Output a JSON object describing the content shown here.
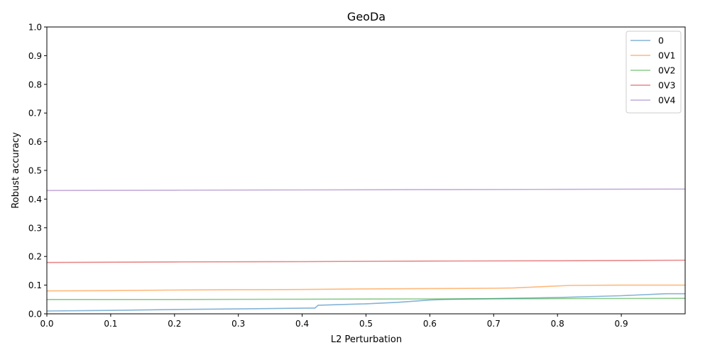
{
  "chart_data": {
    "type": "line",
    "title": "GeoDa",
    "xlabel": "L2 Perturbation",
    "ylabel": "Robust accuracy",
    "xlim": [
      0,
      1.0
    ],
    "ylim": [
      0,
      1.0
    ],
    "xticks": [
      "0.0",
      "0.1",
      "0.2",
      "0.3",
      "0.4",
      "0.5",
      "0.6",
      "0.7",
      "0.8",
      "0.9"
    ],
    "xtick_values": [
      0,
      0.1,
      0.2,
      0.3,
      0.4,
      0.5,
      0.6,
      0.7,
      0.8,
      0.9
    ],
    "yticks": [
      "0.0",
      "0.1",
      "0.2",
      "0.3",
      "0.4",
      "0.5",
      "0.6",
      "0.7",
      "0.8",
      "0.9",
      "1.0"
    ],
    "ytick_values": [
      0,
      0.1,
      0.2,
      0.3,
      0.4,
      0.5,
      0.6,
      0.7,
      0.8,
      0.9,
      1.0
    ],
    "grid": false,
    "legend_position": "top-right",
    "series": [
      {
        "name": "0",
        "color": "#1f77b4",
        "x": [
          0,
          0.1,
          0.2,
          0.3,
          0.41,
          0.42,
          0.425,
          0.5,
          0.55,
          0.6,
          0.62,
          0.7,
          0.8,
          0.9,
          0.97,
          1.0
        ],
        "y": [
          0.01,
          0.012,
          0.015,
          0.017,
          0.02,
          0.02,
          0.03,
          0.035,
          0.04,
          0.048,
          0.05,
          0.053,
          0.057,
          0.063,
          0.07,
          0.07
        ]
      },
      {
        "name": "0V1",
        "color": "#ff7f0e",
        "x": [
          0,
          0.1,
          0.2,
          0.3,
          0.4,
          0.5,
          0.6,
          0.7,
          0.73,
          0.78,
          0.82,
          0.9,
          1.0
        ],
        "y": [
          0.08,
          0.081,
          0.083,
          0.084,
          0.085,
          0.087,
          0.088,
          0.089,
          0.09,
          0.095,
          0.099,
          0.1,
          0.1
        ]
      },
      {
        "name": "0V2",
        "color": "#2ca02c",
        "x": [
          0,
          0.2,
          0.4,
          0.6,
          0.8,
          1.0
        ],
        "y": [
          0.05,
          0.05,
          0.051,
          0.052,
          0.053,
          0.054
        ]
      },
      {
        "name": "0V3",
        "color": "#d62728",
        "x": [
          0,
          0.2,
          0.4,
          0.6,
          0.8,
          1.0
        ],
        "y": [
          0.179,
          0.181,
          0.182,
          0.184,
          0.185,
          0.187
        ]
      },
      {
        "name": "0V4",
        "color": "#9467bd",
        "x": [
          0,
          0.2,
          0.4,
          0.6,
          0.8,
          1.0
        ],
        "y": [
          0.43,
          0.431,
          0.432,
          0.433,
          0.434,
          0.435
        ]
      }
    ]
  }
}
